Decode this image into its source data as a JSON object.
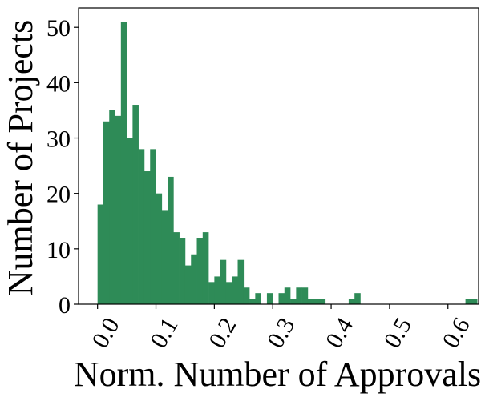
{
  "chart_data": {
    "type": "bar",
    "xlabel": "Norm. Number of Approvals",
    "ylabel": "Number of Projects",
    "bar_color": "#2e8b57",
    "bin_width": 0.01,
    "bins_start": [
      0.0,
      0.01,
      0.02,
      0.03,
      0.04,
      0.05,
      0.06,
      0.07,
      0.08,
      0.09,
      0.1,
      0.11,
      0.12,
      0.13,
      0.14,
      0.15,
      0.16,
      0.17,
      0.18,
      0.19,
      0.2,
      0.21,
      0.22,
      0.23,
      0.24,
      0.25,
      0.26,
      0.27,
      0.28,
      0.29,
      0.3,
      0.31,
      0.32,
      0.33,
      0.34,
      0.35,
      0.36,
      0.37,
      0.38,
      0.39,
      0.4,
      0.41,
      0.42,
      0.43,
      0.44,
      0.45,
      0.46,
      0.47,
      0.48,
      0.49,
      0.5,
      0.51,
      0.52,
      0.53,
      0.54,
      0.55,
      0.56,
      0.57,
      0.58,
      0.59,
      0.6,
      0.61,
      0.62,
      0.63,
      0.64
    ],
    "values": [
      18,
      33,
      35,
      34,
      51,
      30,
      36,
      28,
      24,
      28,
      20,
      17,
      23,
      13,
      12,
      7,
      9,
      12,
      13,
      4,
      5,
      8,
      4,
      5,
      8,
      3,
      1,
      2,
      0,
      2,
      0,
      2,
      3,
      1,
      3,
      3,
      1,
      1,
      1,
      0,
      0,
      0,
      0,
      1,
      2,
      0,
      0,
      0,
      0,
      0,
      0,
      0,
      0,
      0,
      0,
      0,
      0,
      0,
      0,
      0,
      0,
      0,
      0,
      1,
      1
    ],
    "xlim": [
      -0.0325,
      0.6525
    ],
    "ylim": [
      0,
      53.5
    ],
    "xticks": [
      0.0,
      0.1,
      0.2,
      0.3,
      0.4,
      0.5,
      0.6
    ],
    "xtick_labels": [
      "0.0",
      "0.1",
      "0.2",
      "0.3",
      "0.4",
      "0.5",
      "0.6"
    ],
    "yticks": [
      0,
      10,
      20,
      30,
      40,
      50
    ],
    "ytick_labels": [
      "0",
      "10",
      "20",
      "30",
      "40",
      "50"
    ],
    "grid": false,
    "legend": "none"
  }
}
